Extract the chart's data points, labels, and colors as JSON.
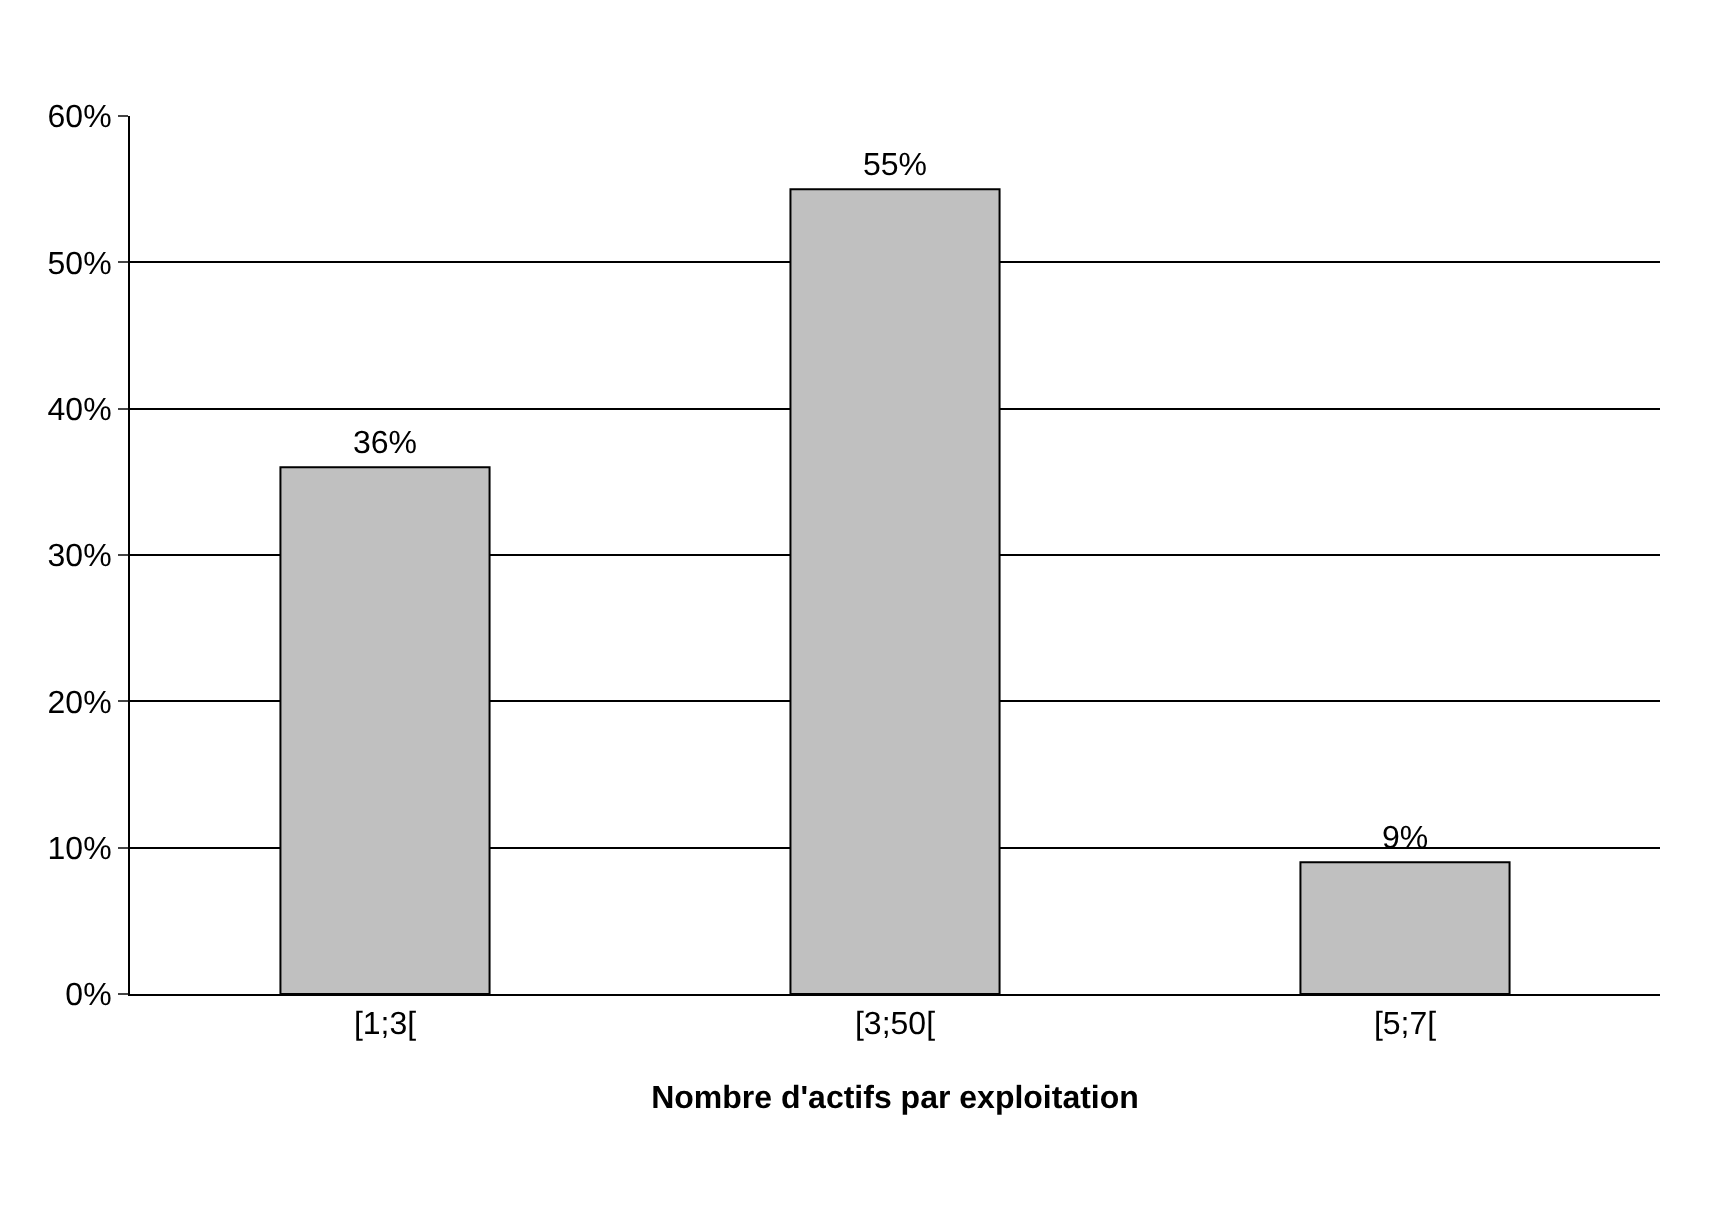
{
  "chart_data": {
    "type": "bar",
    "xlabel": "Nombre d'actifs par exploitation",
    "categories": [
      "[1;3[",
      "[3;50[",
      "[5;7["
    ],
    "values": [
      36,
      55,
      9
    ],
    "value_labels": [
      "36%",
      "55%",
      "9%"
    ],
    "color": "#c0c0c0",
    "ylim": [
      0,
      60
    ],
    "yticks": [
      {
        "value": 0,
        "label": "0%"
      },
      {
        "value": 10,
        "label": "10%"
      },
      {
        "value": 20,
        "label": "20%"
      },
      {
        "value": 30,
        "label": "30%"
      },
      {
        "value": 40,
        "label": "40%"
      },
      {
        "value": 50,
        "label": "50%"
      },
      {
        "value": 60,
        "label": "60%"
      }
    ],
    "grid": "y",
    "legend": false
  }
}
